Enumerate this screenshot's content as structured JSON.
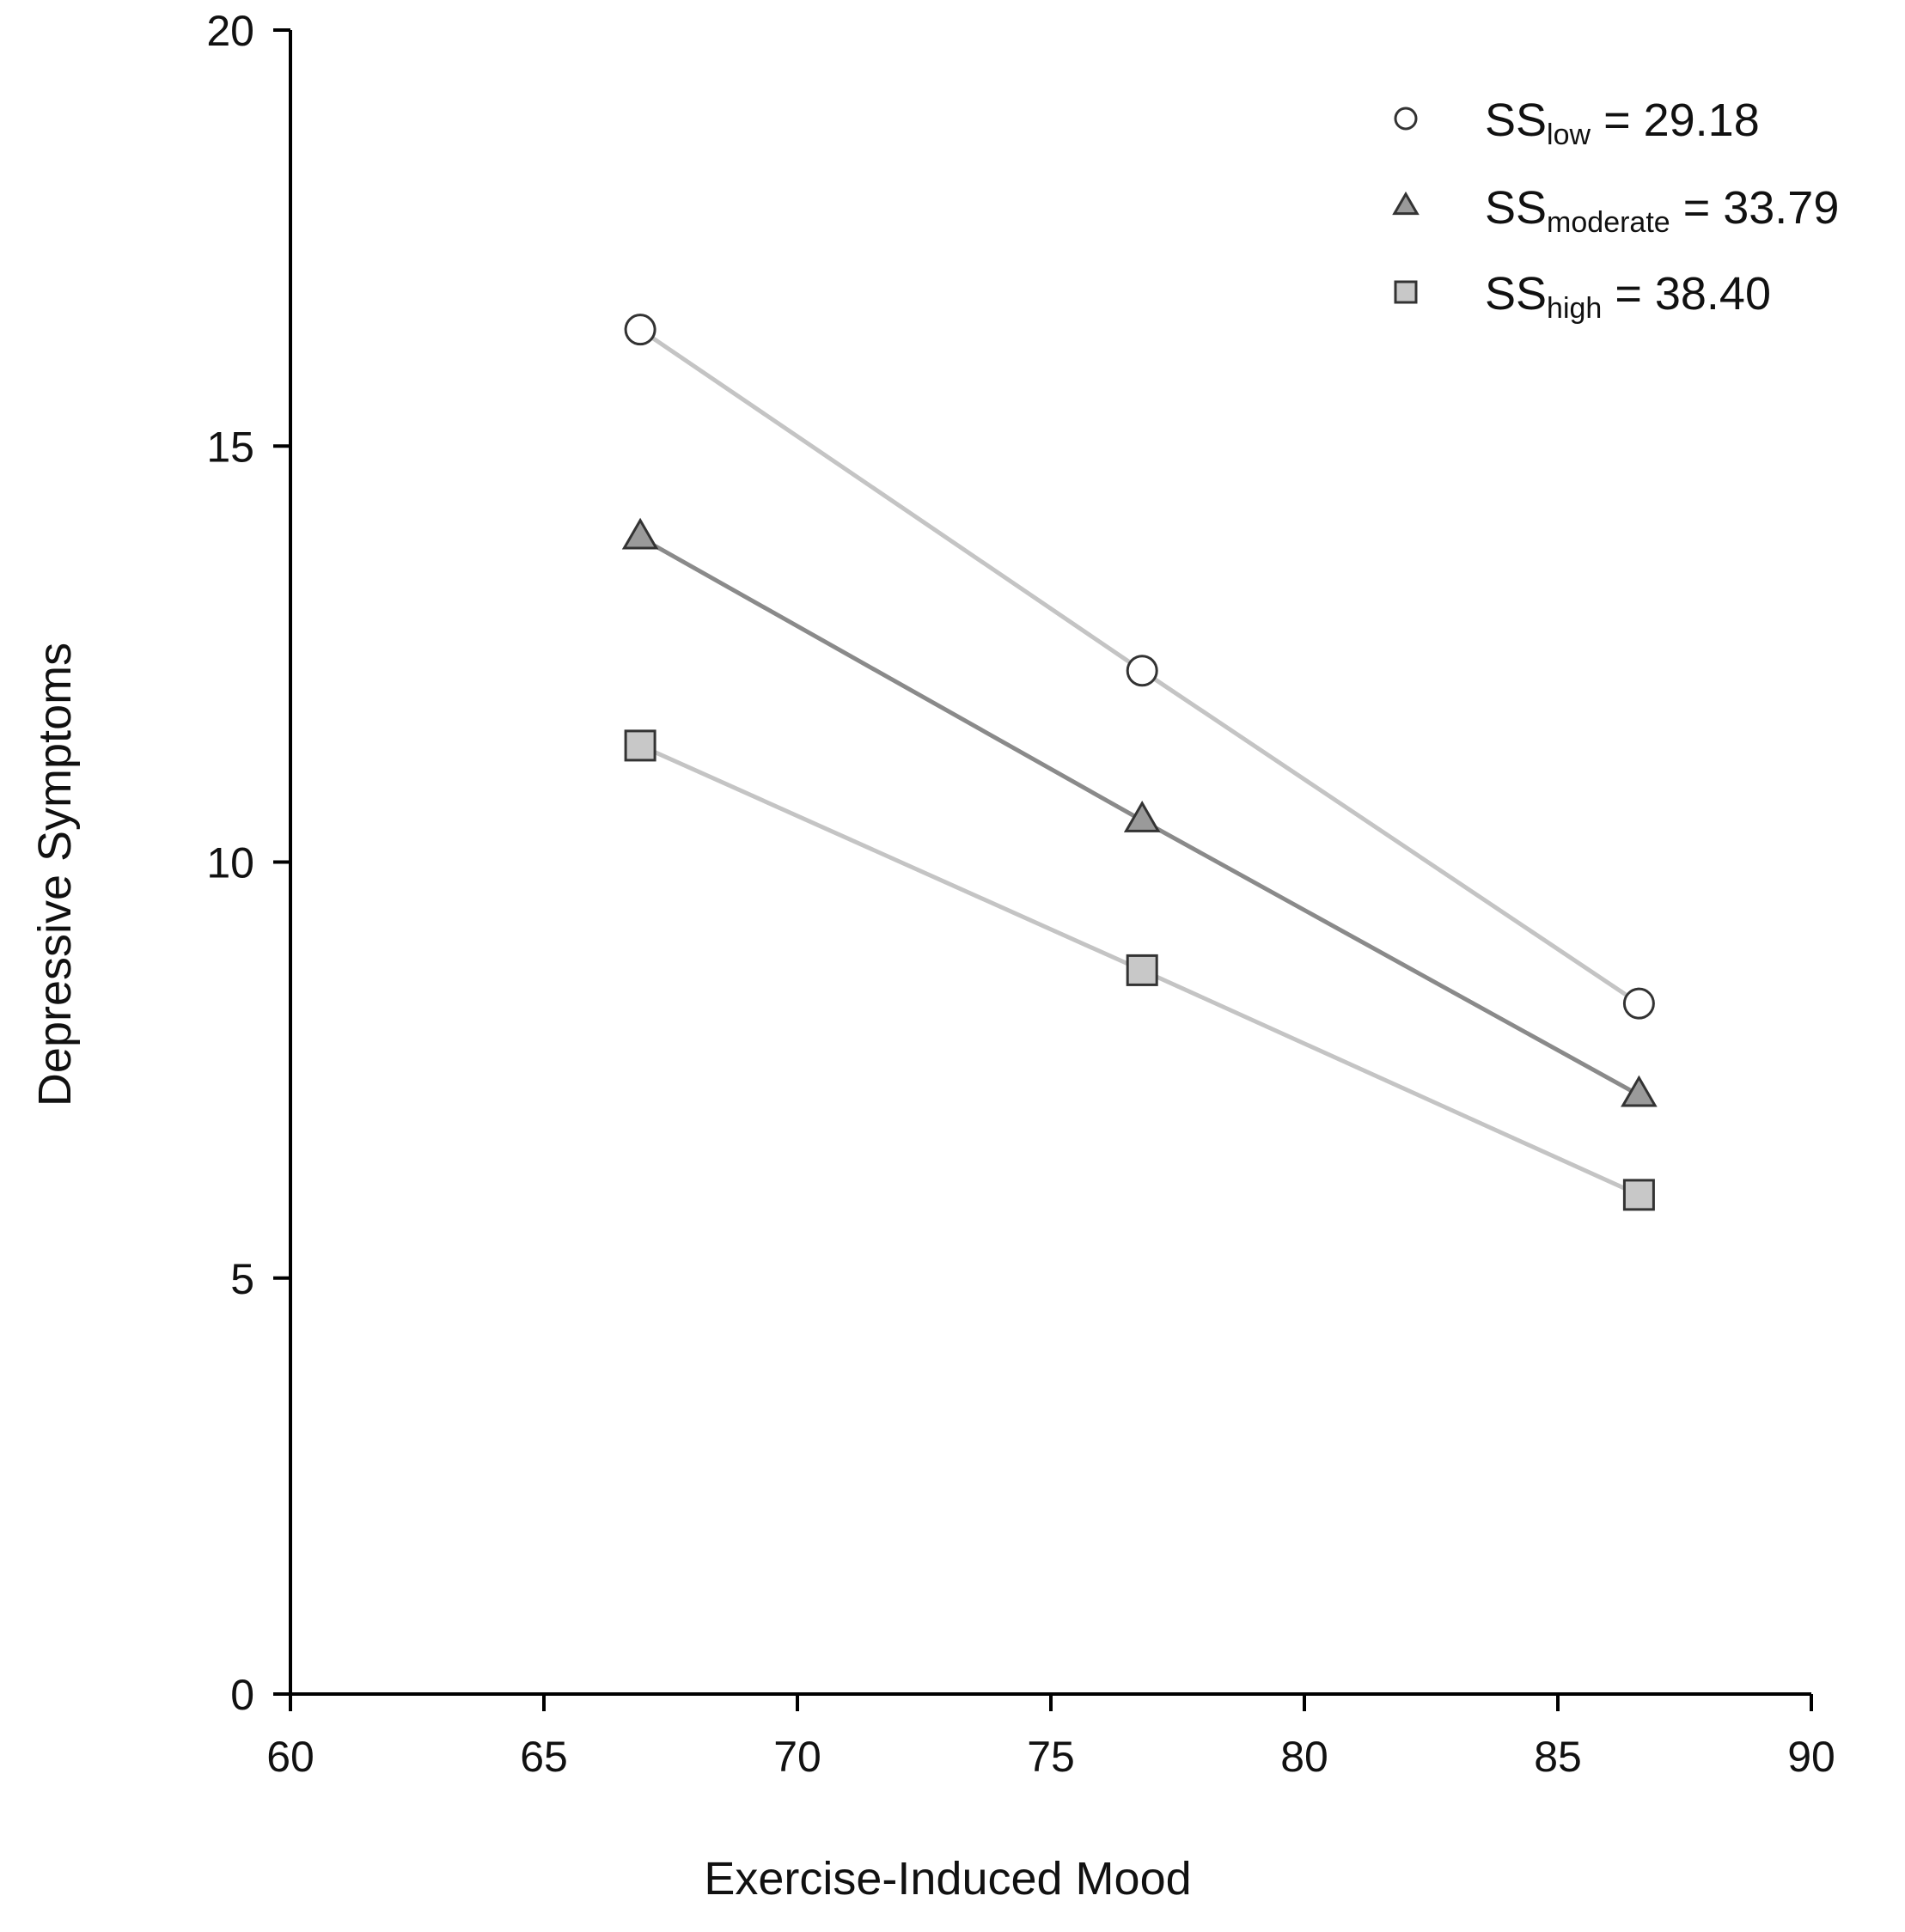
{
  "chart_data": {
    "type": "line",
    "xlabel": "Exercise-Induced Mood",
    "ylabel": "Depressive Symptoms",
    "xlim": [
      60,
      90
    ],
    "ylim": [
      0,
      20
    ],
    "x_ticks": [
      "60",
      "65",
      "70",
      "75",
      "80",
      "85",
      "90"
    ],
    "y_ticks": [
      "0",
      "5",
      "10",
      "15",
      "20"
    ],
    "grid": false,
    "legend_position": "top-right",
    "x": [
      66.9,
      76.8,
      86.6
    ],
    "series": [
      {
        "name_main": "SS",
        "name_sub": "low",
        "name_value": " = 29.18",
        "marker": "circle",
        "marker_fill": "#ffffff",
        "line_color": "#c4c4c4",
        "values": [
          16.4,
          12.3,
          8.3
        ]
      },
      {
        "name_main": "SS",
        "name_sub": "moderate",
        "name_value": " = 33.79",
        "marker": "triangle",
        "marker_fill": "#9a9a9a",
        "line_color": "#8a8a8a",
        "values": [
          13.9,
          10.5,
          7.2
        ]
      },
      {
        "name_main": "SS",
        "name_sub": "high",
        "name_value": " = 38.40",
        "marker": "square",
        "marker_fill": "#c8c8c8",
        "line_color": "#c4c4c4",
        "values": [
          11.4,
          8.7,
          6.0
        ]
      }
    ]
  }
}
